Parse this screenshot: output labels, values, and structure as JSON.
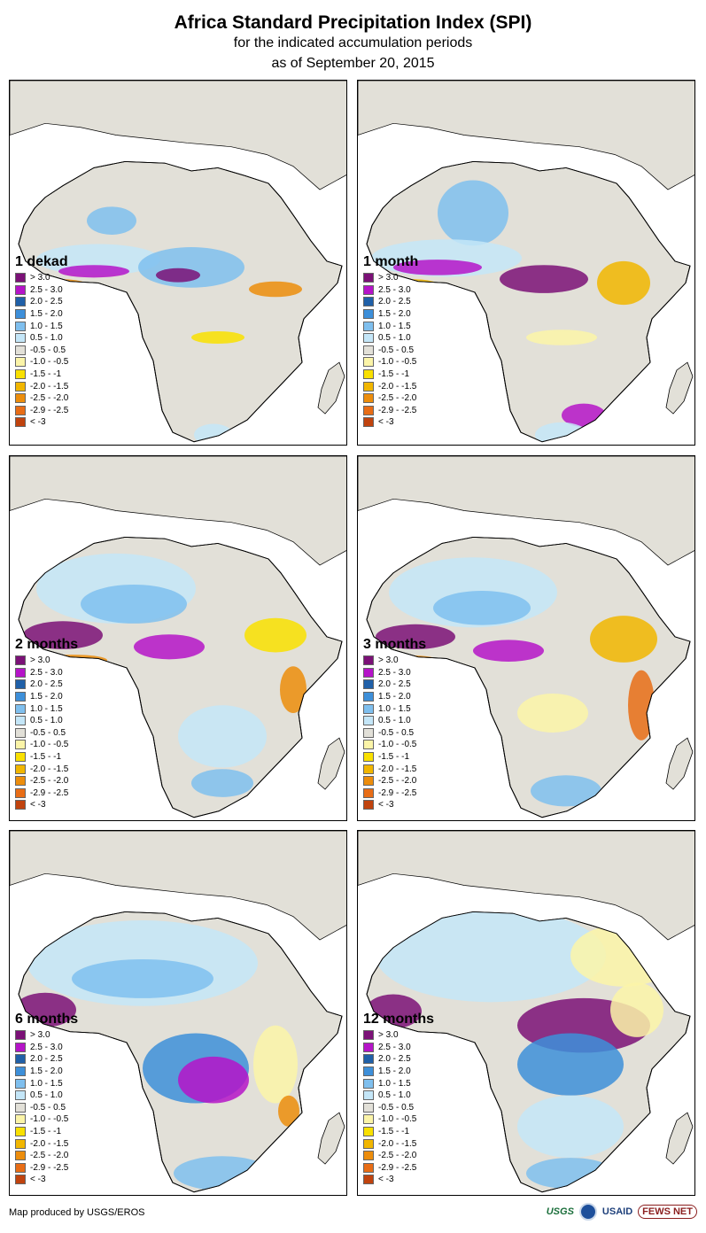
{
  "header": {
    "title": "Africa Standard Precipitation Index (SPI)",
    "subtitle": "for the indicated accumulation periods",
    "date": "as of September 20, 2015"
  },
  "legend_items": [
    {
      "label": "> 3.0",
      "color": "#7b1177"
    },
    {
      "label": "2.5 - 3.0",
      "color": "#b514c8"
    },
    {
      "label": "2.0 - 2.5",
      "color": "#2060a8"
    },
    {
      "label": "1.5 - 2.0",
      "color": "#3d8fd9"
    },
    {
      "label": "1.0 - 1.5",
      "color": "#7fbfee"
    },
    {
      "label": "0.5 - 1.0",
      "color": "#c4e6f8"
    },
    {
      "label": "-0.5 - 0.5",
      "color": "#e2e0d8"
    },
    {
      "label": "-1.0 - -0.5",
      "color": "#fbf4a8"
    },
    {
      "label": "-1.5 - -1",
      "color": "#f9e000"
    },
    {
      "label": "-2.0 - -1.5",
      "color": "#f1b600"
    },
    {
      "label": "-2.5 - -2.0",
      "color": "#ec8d0c"
    },
    {
      "label": "-2.9 - -2.5",
      "color": "#e86d16"
    },
    {
      "label": "< -3",
      "color": "#c0430e"
    }
  ],
  "panels": [
    {
      "title": "1 dekad"
    },
    {
      "title": "1 month"
    },
    {
      "title": "2 months"
    },
    {
      "title": "3 months"
    },
    {
      "title": "6 months"
    },
    {
      "title": "12 months"
    }
  ],
  "footer": {
    "credit": "Map produced by USGS/EROS",
    "logos": {
      "usgs": "USGS",
      "usaid": "USAID",
      "fews": "FEWS NET"
    }
  },
  "colors": {
    "land_neutral": "#e2e0d8",
    "ocean": "#ffffff",
    "border": "#000000"
  }
}
